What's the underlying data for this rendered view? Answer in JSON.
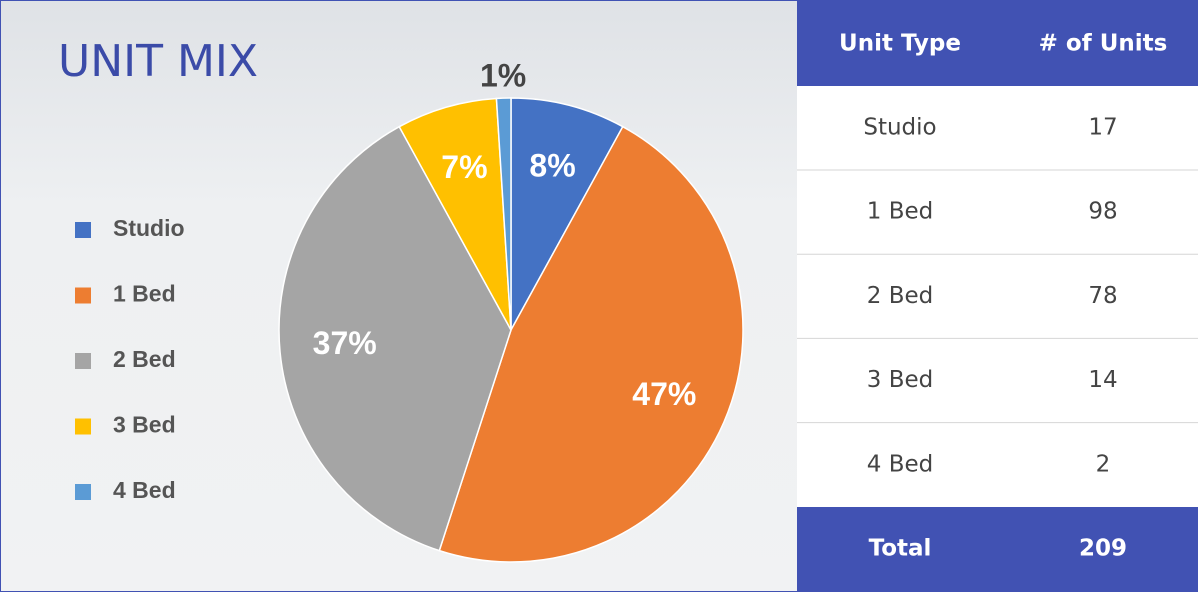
{
  "chart_data": {
    "type": "pie",
    "title": "UNIT MIX",
    "categories": [
      "Studio",
      "1 Bed",
      "2 Bed",
      "3 Bed",
      "4 Bed"
    ],
    "values": [
      8,
      47,
      37,
      7,
      1
    ],
    "value_labels": [
      "8%",
      "47%",
      "37%",
      "7%",
      "1%"
    ],
    "colors": [
      "#4472c4",
      "#ed7d31",
      "#a5a5a5",
      "#ffc000",
      "#5b9bd5"
    ],
    "legend": "left"
  },
  "table": {
    "header": [
      "Unit Type",
      "# of Units"
    ],
    "rows": [
      [
        "Studio",
        17
      ],
      [
        "1 Bed",
        98
      ],
      [
        "2 Bed",
        78
      ],
      [
        "3 Bed",
        14
      ],
      [
        "4 Bed",
        2
      ]
    ],
    "footer": [
      "Total",
      209
    ]
  }
}
